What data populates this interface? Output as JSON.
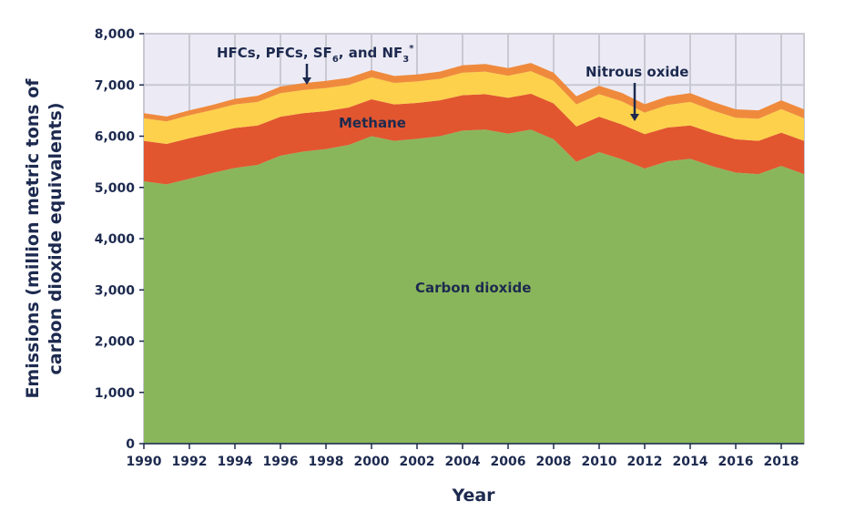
{
  "chart_data": {
    "type": "area",
    "stacked": true,
    "title": "",
    "xlabel": "Year",
    "ylabel_lines": [
      "Emissions (million metric tons of",
      "carbon dioxide equivalents)"
    ],
    "xlim": [
      1990,
      2019
    ],
    "ylim": [
      0,
      8000
    ],
    "grid": true,
    "x": [
      1990,
      1991,
      1992,
      1993,
      1994,
      1995,
      1996,
      1997,
      1998,
      1999,
      2000,
      2001,
      2002,
      2003,
      2004,
      2005,
      2006,
      2007,
      2008,
      2009,
      2010,
      2011,
      2012,
      2013,
      2014,
      2015,
      2016,
      2017,
      2018,
      2019
    ],
    "xticks": [
      "1990",
      "1992",
      "1994",
      "1996",
      "1998",
      "2000",
      "2002",
      "2004",
      "2006",
      "2008",
      "2010",
      "2012",
      "2014",
      "2016",
      "2018"
    ],
    "yticks": [
      "0",
      "1,000",
      "2,000",
      "3,000",
      "4,000",
      "5,000",
      "6,000",
      "7,000",
      "8,000"
    ],
    "series": [
      {
        "name": "Carbon dioxide",
        "color": "#8ab65b",
        "values": [
          5120,
          5060,
          5170,
          5280,
          5380,
          5440,
          5620,
          5700,
          5750,
          5830,
          6000,
          5910,
          5950,
          6000,
          6110,
          6130,
          6050,
          6130,
          5940,
          5500,
          5690,
          5550,
          5370,
          5510,
          5560,
          5410,
          5290,
          5260,
          5420,
          5260
        ]
      },
      {
        "name": "Methane",
        "color": "#e1562f",
        "values": [
          790,
          790,
          790,
          780,
          780,
          770,
          760,
          750,
          740,
          730,
          720,
          710,
          700,
          700,
          690,
          690,
          700,
          700,
          700,
          690,
          690,
          680,
          670,
          660,
          650,
          650,
          650,
          650,
          650,
          650
        ]
      },
      {
        "name": "Nitrous oxide",
        "color": "#fdd14b",
        "values": [
          440,
          440,
          450,
          450,
          460,
          460,
          460,
          450,
          450,
          440,
          430,
          420,
          420,
          420,
          440,
          440,
          430,
          440,
          440,
          430,
          440,
          450,
          420,
          440,
          460,
          440,
          420,
          430,
          460,
          440
        ]
      },
      {
        "name": "HFCs, PFCs, SF6, and NF3*",
        "color": "#ef8a3d",
        "values": [
          100,
          95,
          95,
          100,
          110,
          120,
          130,
          135,
          140,
          140,
          140,
          135,
          135,
          140,
          145,
          150,
          150,
          160,
          160,
          160,
          165,
          165,
          165,
          165,
          170,
          170,
          165,
          165,
          170,
          175
        ]
      }
    ],
    "annotations": {
      "hfcs_main": "HFCs, PFCs, SF",
      "hfcs_sub6": "6",
      "hfcs_mid": ", and NF",
      "hfcs_sub3": "3",
      "hfcs_star": "*",
      "methane": "Methane",
      "nitrous": "Nitrous oxide",
      "co2": "Carbon dioxide"
    },
    "colors": {
      "background": "#ecebf5",
      "grid": "#c9c9d2",
      "text": "#1d2a4f"
    }
  }
}
